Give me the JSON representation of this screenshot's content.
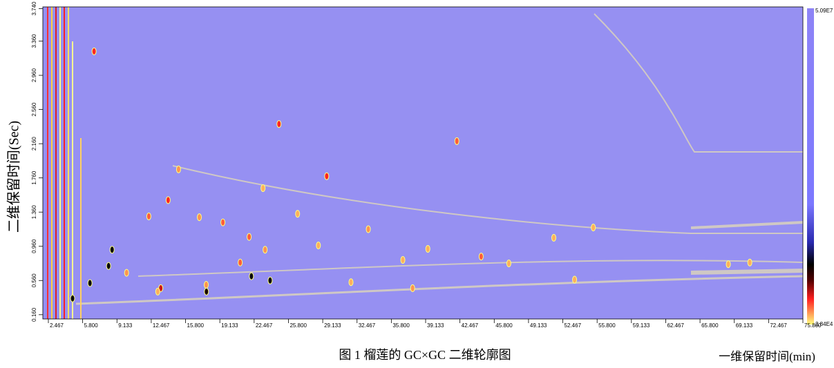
{
  "chart_data": {
    "type": "scatter",
    "title": "图 1 榴莲的 GC×GC 二维轮廓图",
    "x_label": "一维保留时间(min)",
    "y_label": "二维保留时间(Sec)",
    "xlim": [
      1.93,
      75.8
    ],
    "ylim": [
      0.11,
      3.76
    ],
    "xticks": [
      2.467,
      {
        "value": 5.8,
        "label": "5.800"
      },
      9.133,
      12.467,
      {
        "value": 15.8,
        "label": "15.800"
      },
      19.133,
      22.467,
      {
        "value": 25.8,
        "label": "25.800"
      },
      29.133,
      32.467,
      {
        "value": 35.8,
        "label": "35.800"
      },
      39.133,
      42.467,
      {
        "value": 45.8,
        "label": "45.800"
      },
      49.133,
      52.467,
      {
        "value": 55.8,
        "label": "55.800"
      },
      59.133,
      62.467,
      {
        "value": 65.8,
        "label": "65.800"
      },
      69.133,
      72.467,
      {
        "value": 75.8,
        "label": "75.800"
      }
    ],
    "yticks": [
      {
        "value": 0.16,
        "label": "0.160"
      },
      {
        "value": 0.56,
        "label": "0.560"
      },
      {
        "value": 0.96,
        "label": "0.960"
      },
      {
        "value": 1.36,
        "label": "1.360"
      },
      {
        "value": 1.76,
        "label": "1.760"
      },
      {
        "value": 2.16,
        "label": "2.160"
      },
      {
        "value": 2.56,
        "label": "2.560"
      },
      {
        "value": 2.96,
        "label": "2.960"
      },
      {
        "value": 3.36,
        "label": "3.360"
      },
      {
        "value": 3.74,
        "label": "3.740"
      }
    ],
    "colorbar": {
      "lim": [
        {
          "value": 28400,
          "label": "2.84E4"
        },
        {
          "value": 50900000,
          "label": "5.09E7"
        }
      ]
    },
    "x": [
      6.91,
      24.88,
      29.52,
      42.17,
      15.12,
      14.11,
      12.23,
      17.14,
      19.43,
      8.66,
      8.32,
      6.51,
      4.82,
      10.07,
      13.39,
      17.83,
      22.2,
      24.02,
      21.98,
      23.53,
      33.56,
      36.92,
      44.53,
      51.59,
      55.43,
      53.61,
      68.55,
      70.64,
      37.87,
      31.88,
      21.11,
      17.81,
      13.1,
      23.33,
      26.69,
      28.71,
      39.35,
      47.22
    ],
    "values": [
      3.24,
      2.39,
      1.78,
      2.19,
      1.86,
      1.5,
      1.31,
      1.3,
      1.24,
      0.92,
      0.73,
      0.53,
      0.35,
      0.65,
      0.47,
      0.43,
      0.61,
      0.56,
      1.07,
      0.92,
      1.16,
      0.8,
      0.84,
      1.06,
      1.18,
      0.57,
      0.75,
      0.77,
      0.47,
      0.54,
      0.77,
      0.51,
      0.43,
      1.64,
      1.34,
      0.97,
      0.93,
      0.76
    ],
    "intensity": [
      4000000,
      4000000,
      4000000,
      3000000,
      2000000,
      4000000,
      3000000,
      2000000,
      3000000,
      10000000,
      10000000,
      10000000,
      10000000,
      2000000,
      5000000,
      9000000,
      10000000,
      10000000,
      3000000,
      2000000,
      2000000,
      1500000,
      3000000,
      1500000,
      1500000,
      1500000,
      1500000,
      1500000,
      2000000,
      1500000,
      3000000,
      2000000,
      1500000,
      1500000,
      1500000,
      1500000,
      1500000,
      1500000
    ]
  }
}
